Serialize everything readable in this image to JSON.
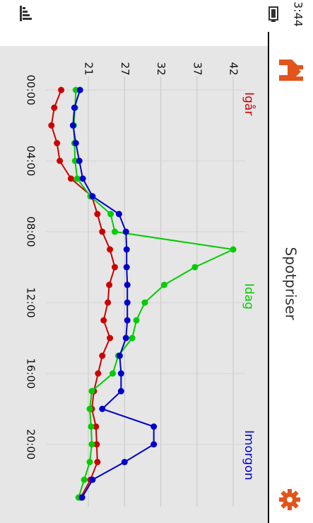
{
  "status": {
    "time": "3:44"
  },
  "app": {
    "title": "Spotpriser"
  },
  "chart_data": {
    "type": "line",
    "x": [
      0,
      1,
      2,
      3,
      4,
      5,
      6,
      7,
      8,
      9,
      10,
      11,
      12,
      13,
      14,
      15,
      16,
      17,
      18,
      19,
      20,
      21,
      22,
      23
    ],
    "xlim": [
      -1.5,
      24
    ],
    "xticks": [
      {
        "value": 0,
        "label": "00:00"
      },
      {
        "value": 4,
        "label": "04:00"
      },
      {
        "value": 8,
        "label": "08:00"
      },
      {
        "value": 12,
        "label": "12:00"
      },
      {
        "value": 16,
        "label": "16:00"
      },
      {
        "value": 20,
        "label": "20:00"
      }
    ],
    "ylim": [
      14,
      46
    ],
    "yticks": [
      {
        "value": 21.4,
        "label": "21"
      },
      {
        "value": 26.6,
        "label": "27"
      },
      {
        "value": 31.8,
        "label": "32"
      },
      {
        "value": 37.0,
        "label": "37"
      },
      {
        "value": 42.2,
        "label": "42"
      }
    ],
    "grid": true,
    "legend": "top",
    "series": [
      {
        "name": "Igår",
        "color": "#cc0000",
        "values": [
          17.5,
          16.5,
          16.1,
          16.9,
          17.3,
          18.9,
          21.9,
          22.7,
          23.4,
          24.5,
          25.2,
          24.4,
          24.2,
          23.6,
          24.5,
          23.4,
          22.8,
          22.2,
          21.9,
          22.5,
          22.6,
          22.7,
          21.7,
          20.3
        ]
      },
      {
        "name": "Idag",
        "color": "#00cc00",
        "values": [
          19.6,
          19.5,
          19.3,
          19.4,
          19.5,
          19.8,
          21.7,
          24.6,
          25.2,
          42.2,
          36.7,
          32.3,
          29.5,
          28.3,
          27.7,
          25.7,
          24.9,
          21.9,
          21.6,
          21.8,
          21.9,
          21.6,
          20.8,
          20.0
        ]
      },
      {
        "name": "Imorgon",
        "color": "#0000cc",
        "values": [
          20.2,
          19.4,
          19.2,
          19.6,
          20.1,
          20.6,
          22.0,
          25.8,
          26.8,
          26.9,
          26.9,
          27.0,
          27.0,
          27.0,
          26.8,
          25.9,
          26.1,
          26.1,
          23.4,
          30.8,
          30.8,
          26.6,
          22.0,
          20.5
        ]
      }
    ]
  }
}
